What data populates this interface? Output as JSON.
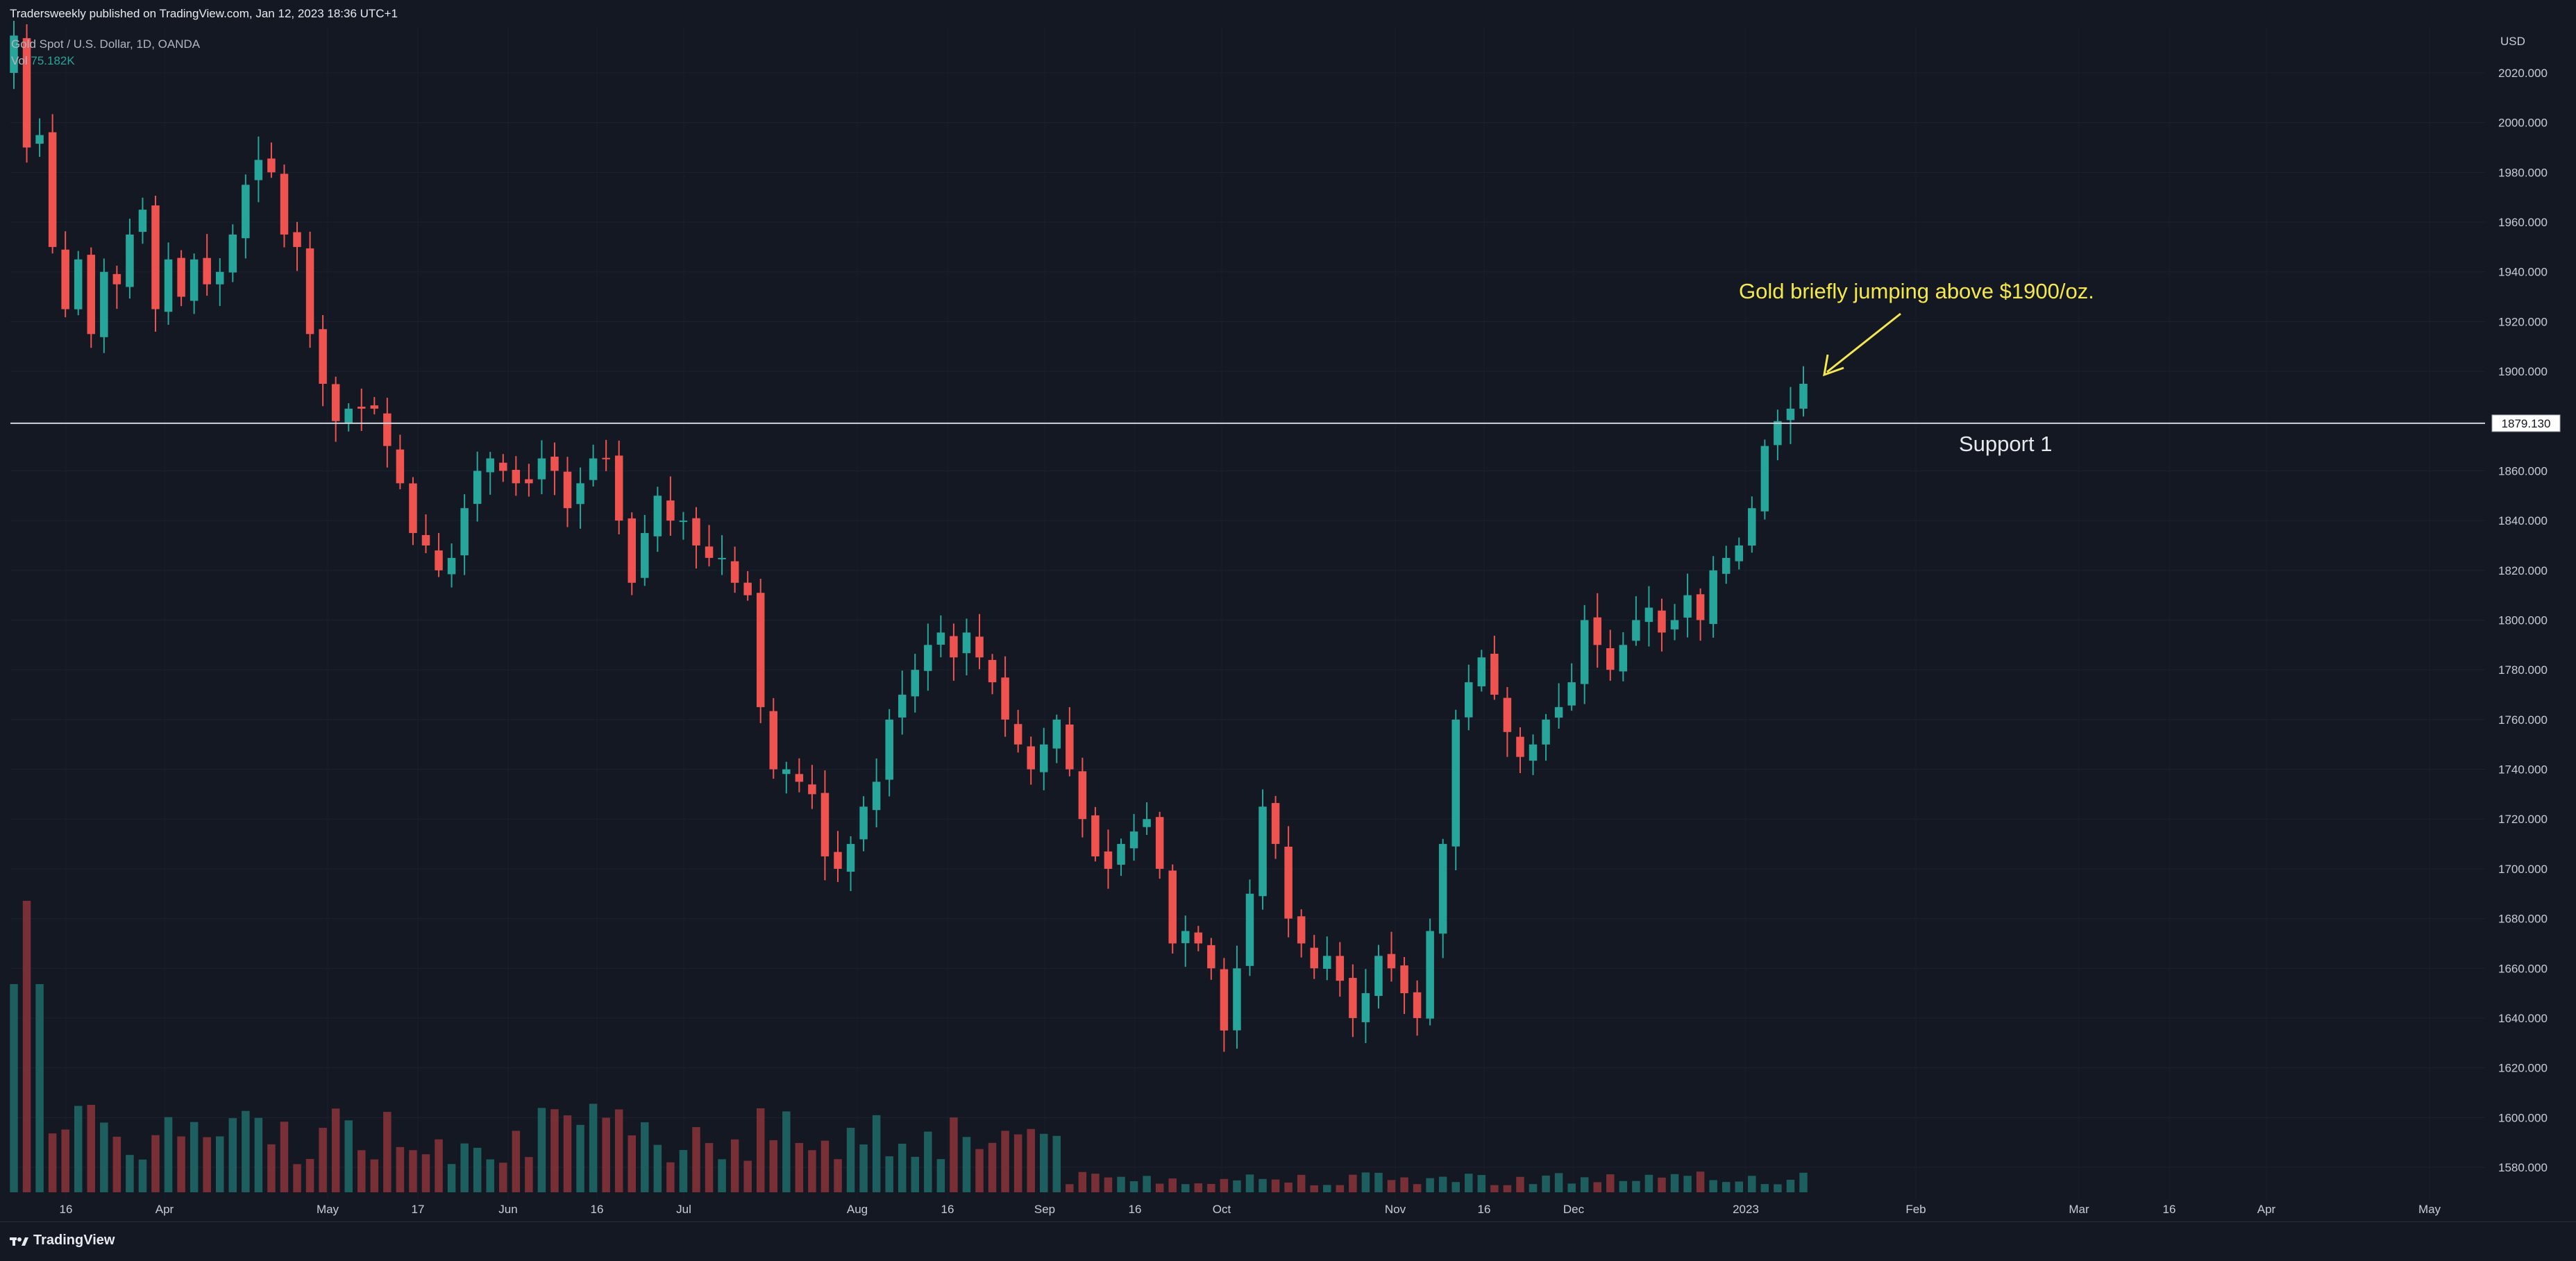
{
  "header": {
    "publisher": "Tradersweekly published on TradingView.com, Jan 12, 2023 18:36 UTC+1"
  },
  "legend": {
    "symbol": "Gold Spot / U.S. Dollar, 1D, OANDA",
    "vol_label": "Vol",
    "vol_value": "75.182K"
  },
  "footer": {
    "brand": "TradingView",
    "logo_icon": "tradingview-logo-icon"
  },
  "colors": {
    "up": "#26a69a",
    "down": "#ef5350",
    "background": "#141823",
    "annotation": "#f5e94a"
  },
  "chart_data": {
    "type": "candlestick",
    "currency_label": "USD",
    "y_ticks": [
      "2020.000",
      "2000.000",
      "1980.000",
      "1960.000",
      "1940.000",
      "1920.000",
      "1900.000",
      "1880.000",
      "1860.000",
      "1840.000",
      "1820.000",
      "1800.000",
      "1780.000",
      "1760.000",
      "1740.000",
      "1720.000",
      "1700.000",
      "1680.000",
      "1660.000",
      "1640.000",
      "1620.000",
      "1600.000",
      "1580.000"
    ],
    "x_ticks": [
      "16",
      "Apr",
      "May",
      "17",
      "Jun",
      "16",
      "Jul",
      "Aug",
      "16",
      "Sep",
      "16",
      "Oct",
      "Nov",
      "16",
      "Dec",
      "2023",
      "Feb",
      "Mar",
      "16",
      "Apr",
      "May"
    ],
    "support_line": {
      "price": 1879.13,
      "label": "1879.130",
      "name": "Support 1"
    },
    "annotation": "Gold briefly jumping above $1900/oz.",
    "ohlc_close_path": [
      2035,
      1990,
      1995,
      1950,
      1925,
      1945,
      1915,
      1940,
      1935,
      1955,
      1965,
      1925,
      1945,
      1930,
      1945,
      1935,
      1940,
      1955,
      1975,
      1985,
      1980,
      1955,
      1950,
      1915,
      1895,
      1880,
      1885,
      1885,
      1885,
      1870,
      1855,
      1835,
      1830,
      1820,
      1825,
      1845,
      1860,
      1865,
      1860,
      1855,
      1855,
      1865,
      1860,
      1845,
      1855,
      1865,
      1865,
      1840,
      1815,
      1835,
      1850,
      1840,
      1840,
      1830,
      1825,
      1825,
      1815,
      1810,
      1765,
      1740,
      1740,
      1735,
      1730,
      1705,
      1700,
      1710,
      1725,
      1735,
      1760,
      1770,
      1780,
      1790,
      1795,
      1785,
      1795,
      1785,
      1775,
      1760,
      1750,
      1740,
      1750,
      1760,
      1740,
      1720,
      1705,
      1700,
      1710,
      1715,
      1720,
      1700,
      1670,
      1675,
      1670,
      1660,
      1635,
      1660,
      1690,
      1725,
      1710,
      1680,
      1670,
      1660,
      1665,
      1655,
      1640,
      1650,
      1665,
      1660,
      1650,
      1640,
      1675,
      1710,
      1760,
      1775,
      1785,
      1770,
      1755,
      1745,
      1750,
      1760,
      1765,
      1775,
      1800,
      1790,
      1780,
      1790,
      1800,
      1805,
      1795,
      1800,
      1810,
      1800,
      1820,
      1825,
      1830,
      1845,
      1870,
      1880,
      1885,
      1895
    ]
  }
}
